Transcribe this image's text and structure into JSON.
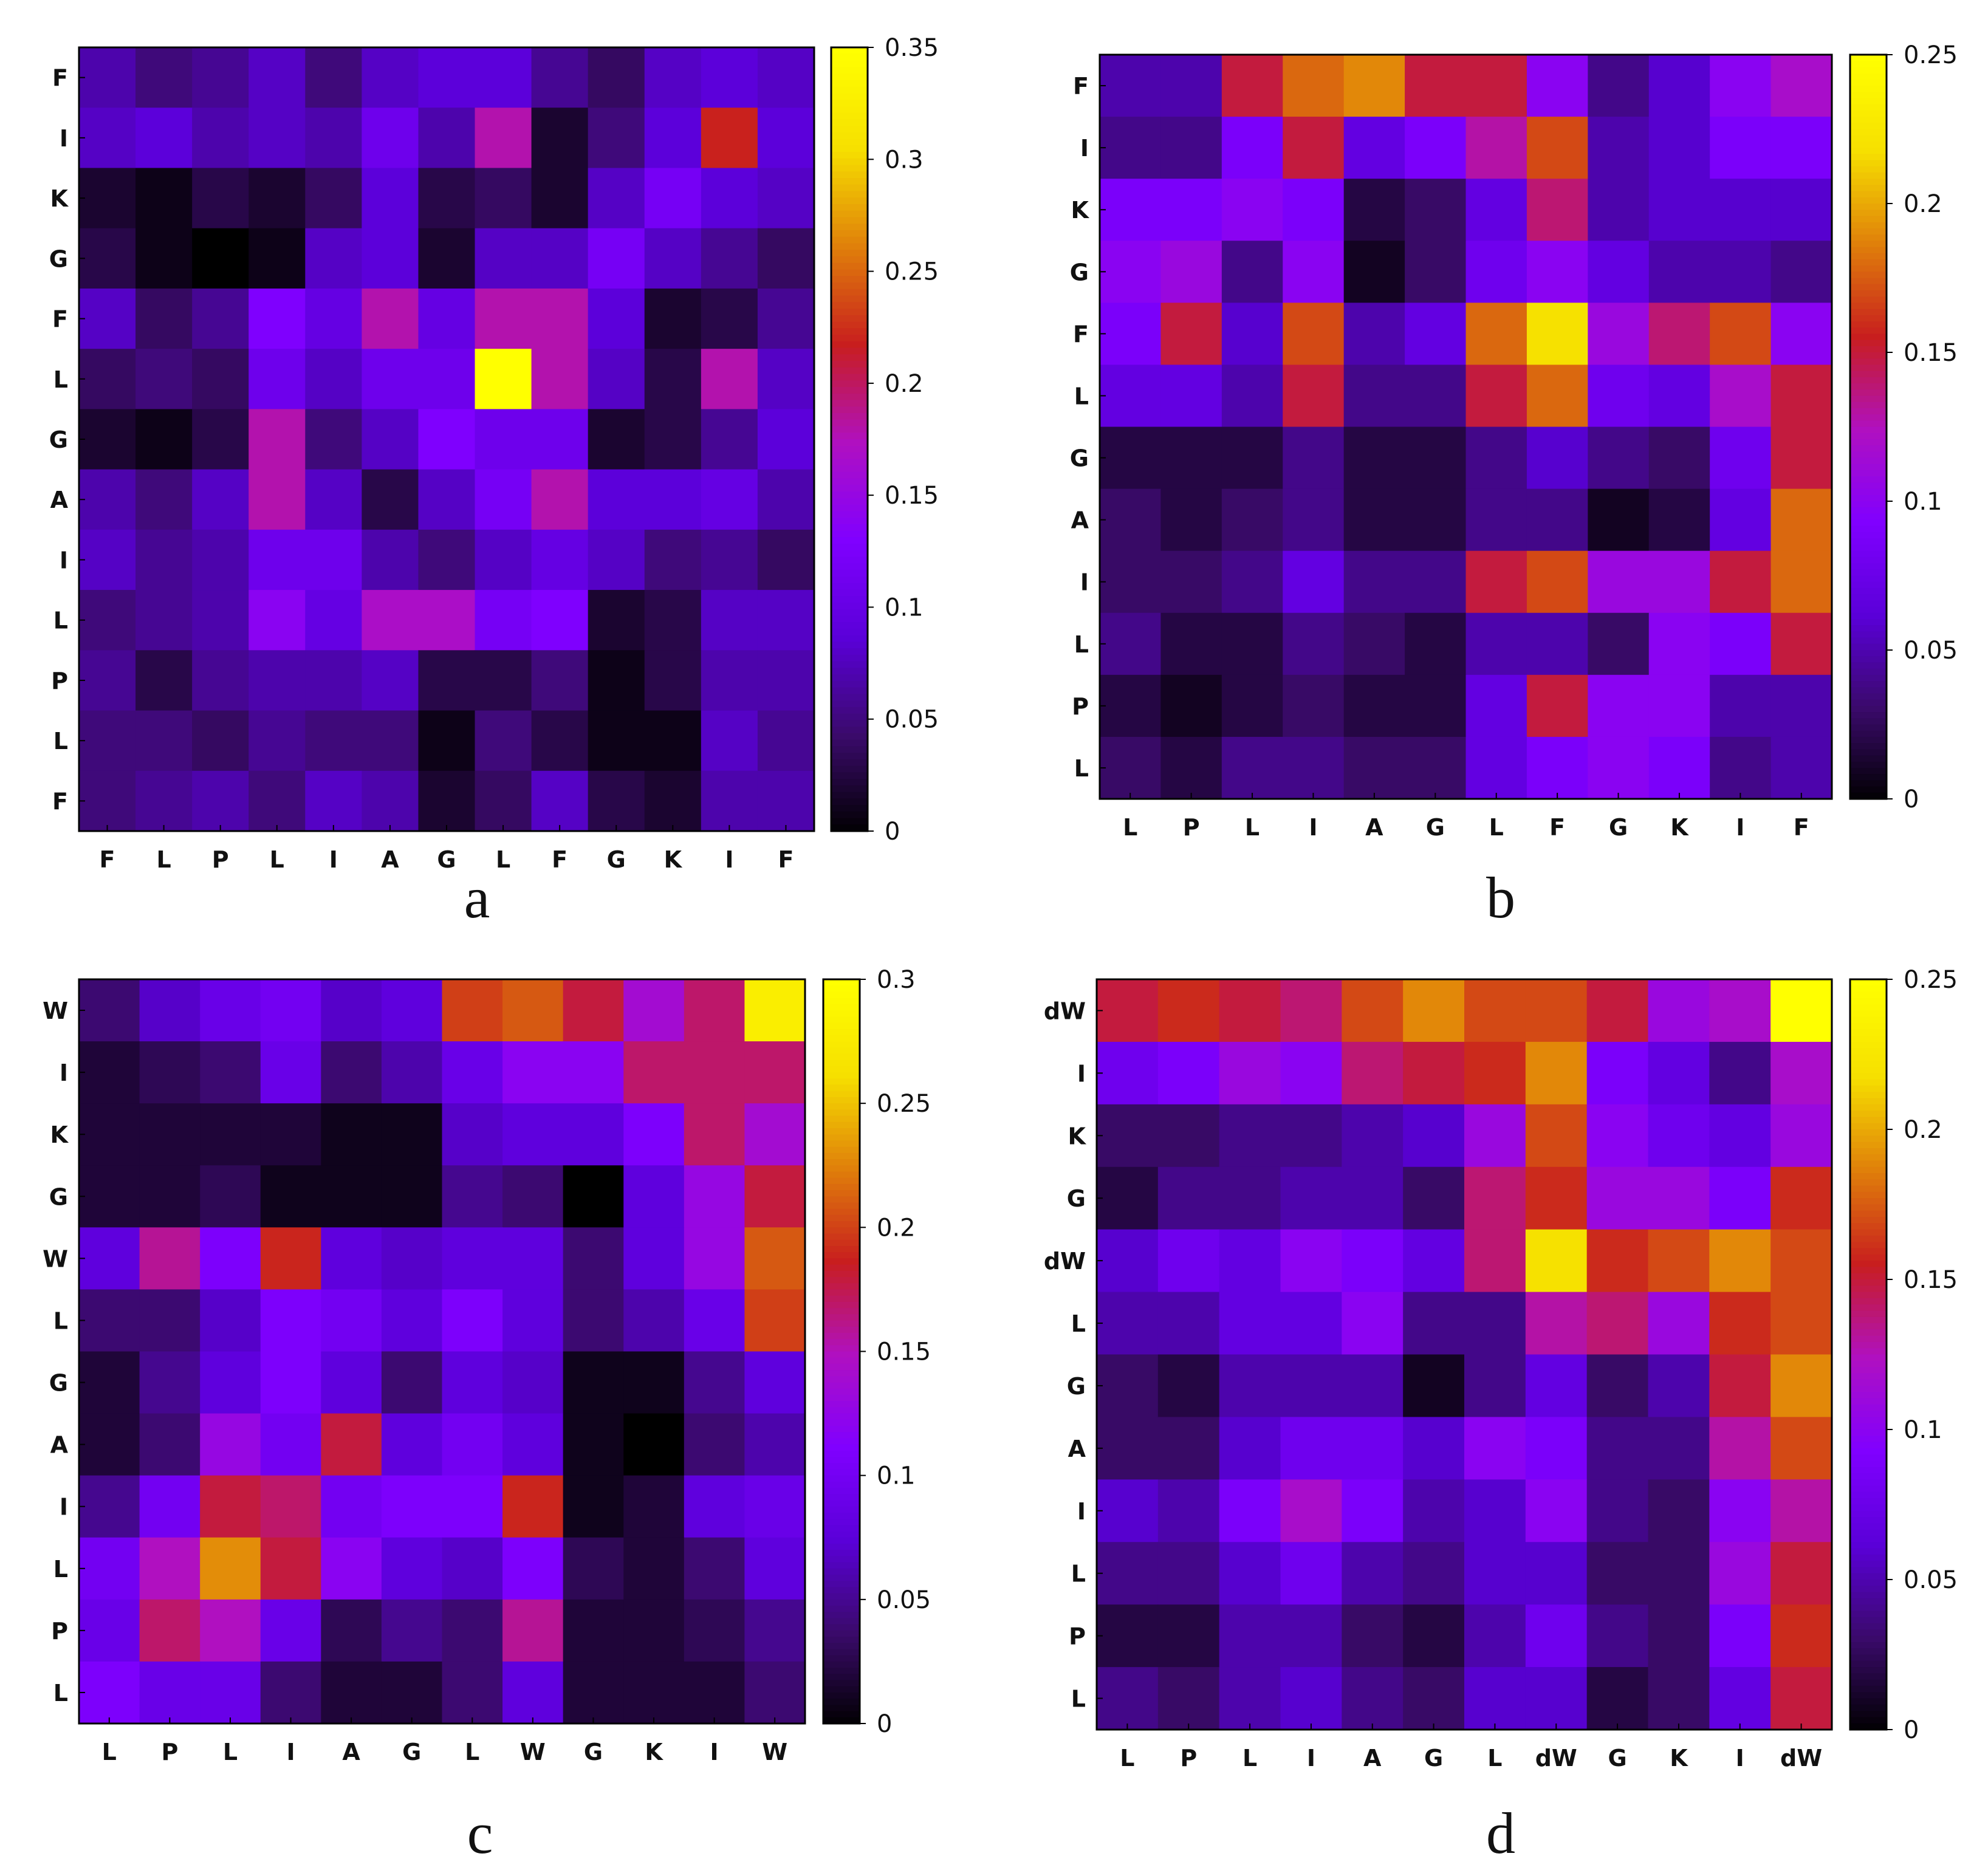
{
  "colorscale": {
    "stops": [
      "#000000",
      "#3a0a6a",
      "#5a00d8",
      "#8000ff",
      "#b010c0",
      "#c81e1e",
      "#e0800a",
      "#f6e000",
      "#ffff00"
    ]
  },
  "chart_data": [
    {
      "type": "heatmap",
      "label": "a",
      "xlabels": [
        "F",
        "L",
        "P",
        "L",
        "I",
        "A",
        "G",
        "L",
        "F",
        "G",
        "K",
        "I",
        "F"
      ],
      "ylabels": [
        "F",
        "I",
        "K",
        "G",
        "F",
        "L",
        "G",
        "A",
        "I",
        "L",
        "P",
        "L",
        "F"
      ],
      "zlim": [
        0,
        0.35
      ],
      "colorbar_ticks": [
        "0.35",
        "0.3",
        "0.25",
        "0.2",
        "0.15",
        "0.1",
        "0.05",
        "0"
      ],
      "values": [
        [
          0.07,
          0.05,
          0.06,
          0.08,
          0.05,
          0.08,
          0.09,
          0.09,
          0.06,
          0.04,
          0.08,
          0.09,
          0.08
        ],
        [
          0.08,
          0.09,
          0.07,
          0.08,
          0.07,
          0.11,
          0.07,
          0.18,
          0.02,
          0.05,
          0.09,
          0.22,
          0.09
        ],
        [
          0.02,
          0.01,
          0.03,
          0.02,
          0.04,
          0.09,
          0.03,
          0.04,
          0.02,
          0.08,
          0.12,
          0.09,
          0.08
        ],
        [
          0.03,
          0.01,
          0.0,
          0.01,
          0.08,
          0.09,
          0.02,
          0.08,
          0.08,
          0.12,
          0.08,
          0.06,
          0.04
        ],
        [
          0.08,
          0.04,
          0.06,
          0.13,
          0.1,
          0.18,
          0.1,
          0.18,
          0.18,
          0.09,
          0.02,
          0.03,
          0.06
        ],
        [
          0.04,
          0.05,
          0.04,
          0.11,
          0.08,
          0.11,
          0.11,
          0.35,
          0.18,
          0.08,
          0.03,
          0.18,
          0.08
        ],
        [
          0.02,
          0.01,
          0.03,
          0.18,
          0.05,
          0.08,
          0.13,
          0.11,
          0.11,
          0.02,
          0.03,
          0.06,
          0.09
        ],
        [
          0.07,
          0.05,
          0.08,
          0.18,
          0.08,
          0.03,
          0.08,
          0.12,
          0.18,
          0.09,
          0.09,
          0.1,
          0.07
        ],
        [
          0.08,
          0.06,
          0.07,
          0.11,
          0.11,
          0.07,
          0.05,
          0.08,
          0.1,
          0.08,
          0.05,
          0.06,
          0.04
        ],
        [
          0.05,
          0.06,
          0.07,
          0.14,
          0.1,
          0.17,
          0.17,
          0.12,
          0.13,
          0.02,
          0.03,
          0.08,
          0.08
        ],
        [
          0.06,
          0.03,
          0.06,
          0.07,
          0.07,
          0.08,
          0.03,
          0.03,
          0.05,
          0.01,
          0.03,
          0.07,
          0.07
        ],
        [
          0.05,
          0.05,
          0.04,
          0.06,
          0.05,
          0.05,
          0.01,
          0.05,
          0.03,
          0.01,
          0.01,
          0.08,
          0.06
        ],
        [
          0.05,
          0.06,
          0.07,
          0.05,
          0.08,
          0.07,
          0.02,
          0.04,
          0.08,
          0.03,
          0.02,
          0.07,
          0.07
        ]
      ]
    },
    {
      "type": "heatmap",
      "label": "b",
      "xlabels": [
        "L",
        "P",
        "L",
        "I",
        "A",
        "G",
        "L",
        "F",
        "G",
        "K",
        "I",
        "F"
      ],
      "ylabels": [
        "F",
        "I",
        "K",
        "G",
        "F",
        "L",
        "G",
        "A",
        "I",
        "L",
        "P",
        "L"
      ],
      "zlim": [
        0,
        0.25
      ],
      "colorbar_ticks": [
        "0.25",
        "0.2",
        "0.15",
        "0.1",
        "0.05",
        "0"
      ],
      "values": [
        [
          0.05,
          0.05,
          0.15,
          0.18,
          0.19,
          0.15,
          0.15,
          0.1,
          0.04,
          0.06,
          0.1,
          0.12
        ],
        [
          0.04,
          0.04,
          0.09,
          0.15,
          0.07,
          0.09,
          0.13,
          0.17,
          0.05,
          0.06,
          0.09,
          0.09
        ],
        [
          0.09,
          0.09,
          0.1,
          0.09,
          0.02,
          0.03,
          0.07,
          0.14,
          0.05,
          0.06,
          0.06,
          0.06
        ],
        [
          0.1,
          0.11,
          0.04,
          0.1,
          0.01,
          0.03,
          0.08,
          0.1,
          0.07,
          0.05,
          0.05,
          0.04
        ],
        [
          0.09,
          0.15,
          0.06,
          0.17,
          0.05,
          0.07,
          0.18,
          0.22,
          0.11,
          0.14,
          0.17,
          0.1
        ],
        [
          0.07,
          0.07,
          0.05,
          0.15,
          0.04,
          0.04,
          0.15,
          0.18,
          0.08,
          0.07,
          0.12,
          0.15
        ],
        [
          0.02,
          0.02,
          0.02,
          0.04,
          0.02,
          0.02,
          0.04,
          0.06,
          0.04,
          0.03,
          0.08,
          0.15
        ],
        [
          0.03,
          0.02,
          0.03,
          0.04,
          0.02,
          0.02,
          0.04,
          0.04,
          0.01,
          0.02,
          0.07,
          0.18
        ],
        [
          0.03,
          0.03,
          0.04,
          0.07,
          0.04,
          0.04,
          0.15,
          0.17,
          0.11,
          0.11,
          0.15,
          0.18
        ],
        [
          0.04,
          0.02,
          0.02,
          0.04,
          0.03,
          0.02,
          0.05,
          0.05,
          0.03,
          0.1,
          0.09,
          0.15
        ],
        [
          0.02,
          0.01,
          0.02,
          0.03,
          0.02,
          0.02,
          0.07,
          0.15,
          0.1,
          0.1,
          0.05,
          0.05
        ],
        [
          0.03,
          0.02,
          0.04,
          0.04,
          0.03,
          0.03,
          0.07,
          0.09,
          0.1,
          0.09,
          0.04,
          0.05
        ]
      ]
    },
    {
      "type": "heatmap",
      "label": "c",
      "xlabels": [
        "L",
        "P",
        "L",
        "I",
        "A",
        "G",
        "L",
        "W",
        "G",
        "K",
        "I",
        "W"
      ],
      "ylabels": [
        "W",
        "I",
        "K",
        "G",
        "W",
        "L",
        "G",
        "A",
        "I",
        "L",
        "P",
        "L"
      ],
      "zlim": [
        0,
        0.3
      ],
      "colorbar_ticks": [
        "0.3",
        "0.25",
        "0.2",
        "0.15",
        "0.1",
        "0.05",
        "0"
      ],
      "values": [
        [
          0.04,
          0.07,
          0.09,
          0.1,
          0.07,
          0.08,
          0.2,
          0.21,
          0.18,
          0.14,
          0.17,
          0.28
        ],
        [
          0.02,
          0.03,
          0.04,
          0.09,
          0.04,
          0.06,
          0.09,
          0.12,
          0.12,
          0.17,
          0.17,
          0.17
        ],
        [
          0.02,
          0.02,
          0.02,
          0.02,
          0.01,
          0.01,
          0.07,
          0.08,
          0.08,
          0.11,
          0.17,
          0.14
        ],
        [
          0.02,
          0.02,
          0.03,
          0.01,
          0.01,
          0.01,
          0.05,
          0.04,
          0.0,
          0.08,
          0.13,
          0.18
        ],
        [
          0.08,
          0.16,
          0.11,
          0.19,
          0.08,
          0.07,
          0.08,
          0.08,
          0.04,
          0.08,
          0.13,
          0.21
        ],
        [
          0.04,
          0.04,
          0.07,
          0.11,
          0.1,
          0.08,
          0.11,
          0.08,
          0.04,
          0.06,
          0.09,
          0.2
        ],
        [
          0.02,
          0.05,
          0.08,
          0.11,
          0.08,
          0.04,
          0.08,
          0.07,
          0.01,
          0.01,
          0.05,
          0.08
        ],
        [
          0.02,
          0.04,
          0.13,
          0.1,
          0.18,
          0.08,
          0.1,
          0.08,
          0.01,
          0.0,
          0.04,
          0.06
        ],
        [
          0.05,
          0.1,
          0.18,
          0.17,
          0.1,
          0.11,
          0.11,
          0.19,
          0.01,
          0.02,
          0.08,
          0.09
        ],
        [
          0.1,
          0.15,
          0.23,
          0.18,
          0.12,
          0.08,
          0.07,
          0.11,
          0.03,
          0.02,
          0.04,
          0.08
        ],
        [
          0.09,
          0.17,
          0.15,
          0.09,
          0.03,
          0.05,
          0.04,
          0.16,
          0.02,
          0.02,
          0.03,
          0.05
        ],
        [
          0.11,
          0.09,
          0.09,
          0.04,
          0.02,
          0.02,
          0.04,
          0.08,
          0.02,
          0.02,
          0.02,
          0.04
        ]
      ]
    },
    {
      "type": "heatmap",
      "label": "d",
      "xlabels": [
        "L",
        "P",
        "L",
        "I",
        "A",
        "G",
        "L",
        "dW",
        "G",
        "K",
        "I",
        "dW"
      ],
      "ylabels": [
        "dW",
        "I",
        "K",
        "G",
        "dW",
        "L",
        "G",
        "A",
        "I",
        "L",
        "P",
        "L"
      ],
      "zlim": [
        0,
        0.25
      ],
      "colorbar_ticks": [
        "0.25",
        "0.2",
        "0.15",
        "0.1",
        "0.05",
        "0"
      ],
      "values": [
        [
          0.15,
          0.16,
          0.15,
          0.14,
          0.17,
          0.19,
          0.17,
          0.17,
          0.15,
          0.11,
          0.12,
          0.25
        ],
        [
          0.08,
          0.09,
          0.11,
          0.1,
          0.14,
          0.15,
          0.16,
          0.19,
          0.09,
          0.07,
          0.04,
          0.12
        ],
        [
          0.03,
          0.03,
          0.04,
          0.04,
          0.05,
          0.06,
          0.11,
          0.17,
          0.1,
          0.08,
          0.07,
          0.11
        ],
        [
          0.02,
          0.04,
          0.04,
          0.05,
          0.05,
          0.03,
          0.14,
          0.16,
          0.11,
          0.11,
          0.09,
          0.16
        ],
        [
          0.06,
          0.08,
          0.07,
          0.1,
          0.09,
          0.07,
          0.14,
          0.22,
          0.16,
          0.17,
          0.19,
          0.17
        ],
        [
          0.05,
          0.05,
          0.07,
          0.07,
          0.1,
          0.04,
          0.04,
          0.13,
          0.14,
          0.11,
          0.16,
          0.17
        ],
        [
          0.03,
          0.02,
          0.05,
          0.05,
          0.05,
          0.01,
          0.04,
          0.07,
          0.03,
          0.05,
          0.15,
          0.19
        ],
        [
          0.03,
          0.03,
          0.06,
          0.08,
          0.08,
          0.06,
          0.1,
          0.09,
          0.04,
          0.04,
          0.13,
          0.17
        ],
        [
          0.06,
          0.05,
          0.09,
          0.12,
          0.09,
          0.05,
          0.06,
          0.1,
          0.04,
          0.03,
          0.1,
          0.13
        ],
        [
          0.04,
          0.04,
          0.06,
          0.08,
          0.05,
          0.04,
          0.06,
          0.06,
          0.03,
          0.03,
          0.11,
          0.15
        ],
        [
          0.02,
          0.02,
          0.05,
          0.05,
          0.03,
          0.02,
          0.05,
          0.08,
          0.04,
          0.03,
          0.09,
          0.16
        ],
        [
          0.04,
          0.03,
          0.05,
          0.06,
          0.04,
          0.03,
          0.06,
          0.06,
          0.02,
          0.03,
          0.07,
          0.15
        ]
      ]
    }
  ]
}
